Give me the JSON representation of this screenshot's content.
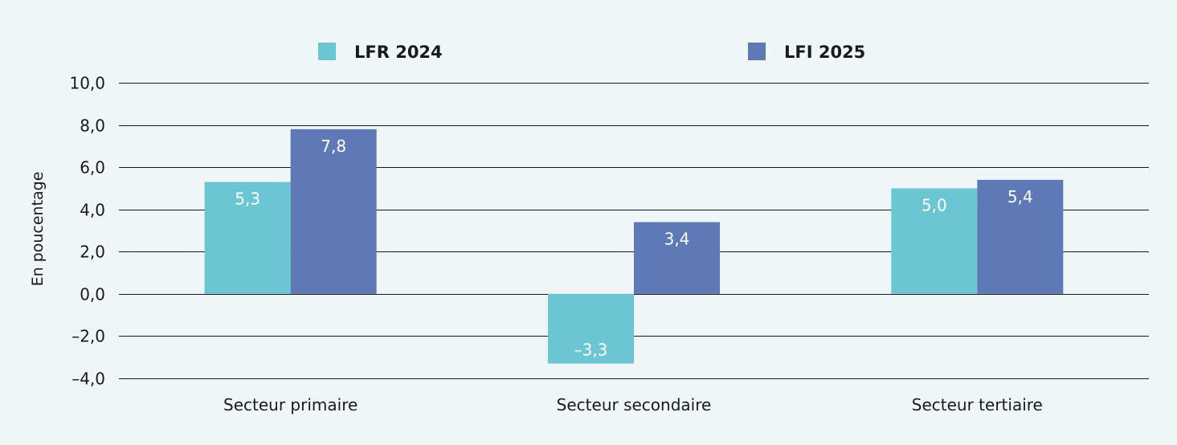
{
  "chart_data": {
    "type": "bar",
    "categories": [
      "Secteur primaire",
      "Secteur secondaire",
      "Secteur tertiaire"
    ],
    "series": [
      {
        "name": "LFR 2024",
        "values": [
          5.3,
          -3.3,
          5.0
        ],
        "value_labels": [
          "5,3",
          "–3,3",
          "5,0"
        ],
        "color": "#6cc5d3"
      },
      {
        "name": "LFI 2025",
        "values": [
          7.8,
          3.4,
          5.4
        ],
        "value_labels": [
          "7,8",
          "3,4",
          "5,4"
        ],
        "color": "#5f79b7"
      }
    ],
    "ylabel": "En poucentage",
    "ylim": [
      -4,
      10
    ],
    "yticks": [
      10,
      8,
      6,
      4,
      2,
      0,
      -2,
      -4
    ],
    "ytick_labels": [
      "10,0",
      "8,0",
      "6,0",
      "4,0",
      "2,0",
      "0,0",
      "–2,0",
      "–4,0"
    ],
    "grid": true,
    "legend_position": "top"
  }
}
